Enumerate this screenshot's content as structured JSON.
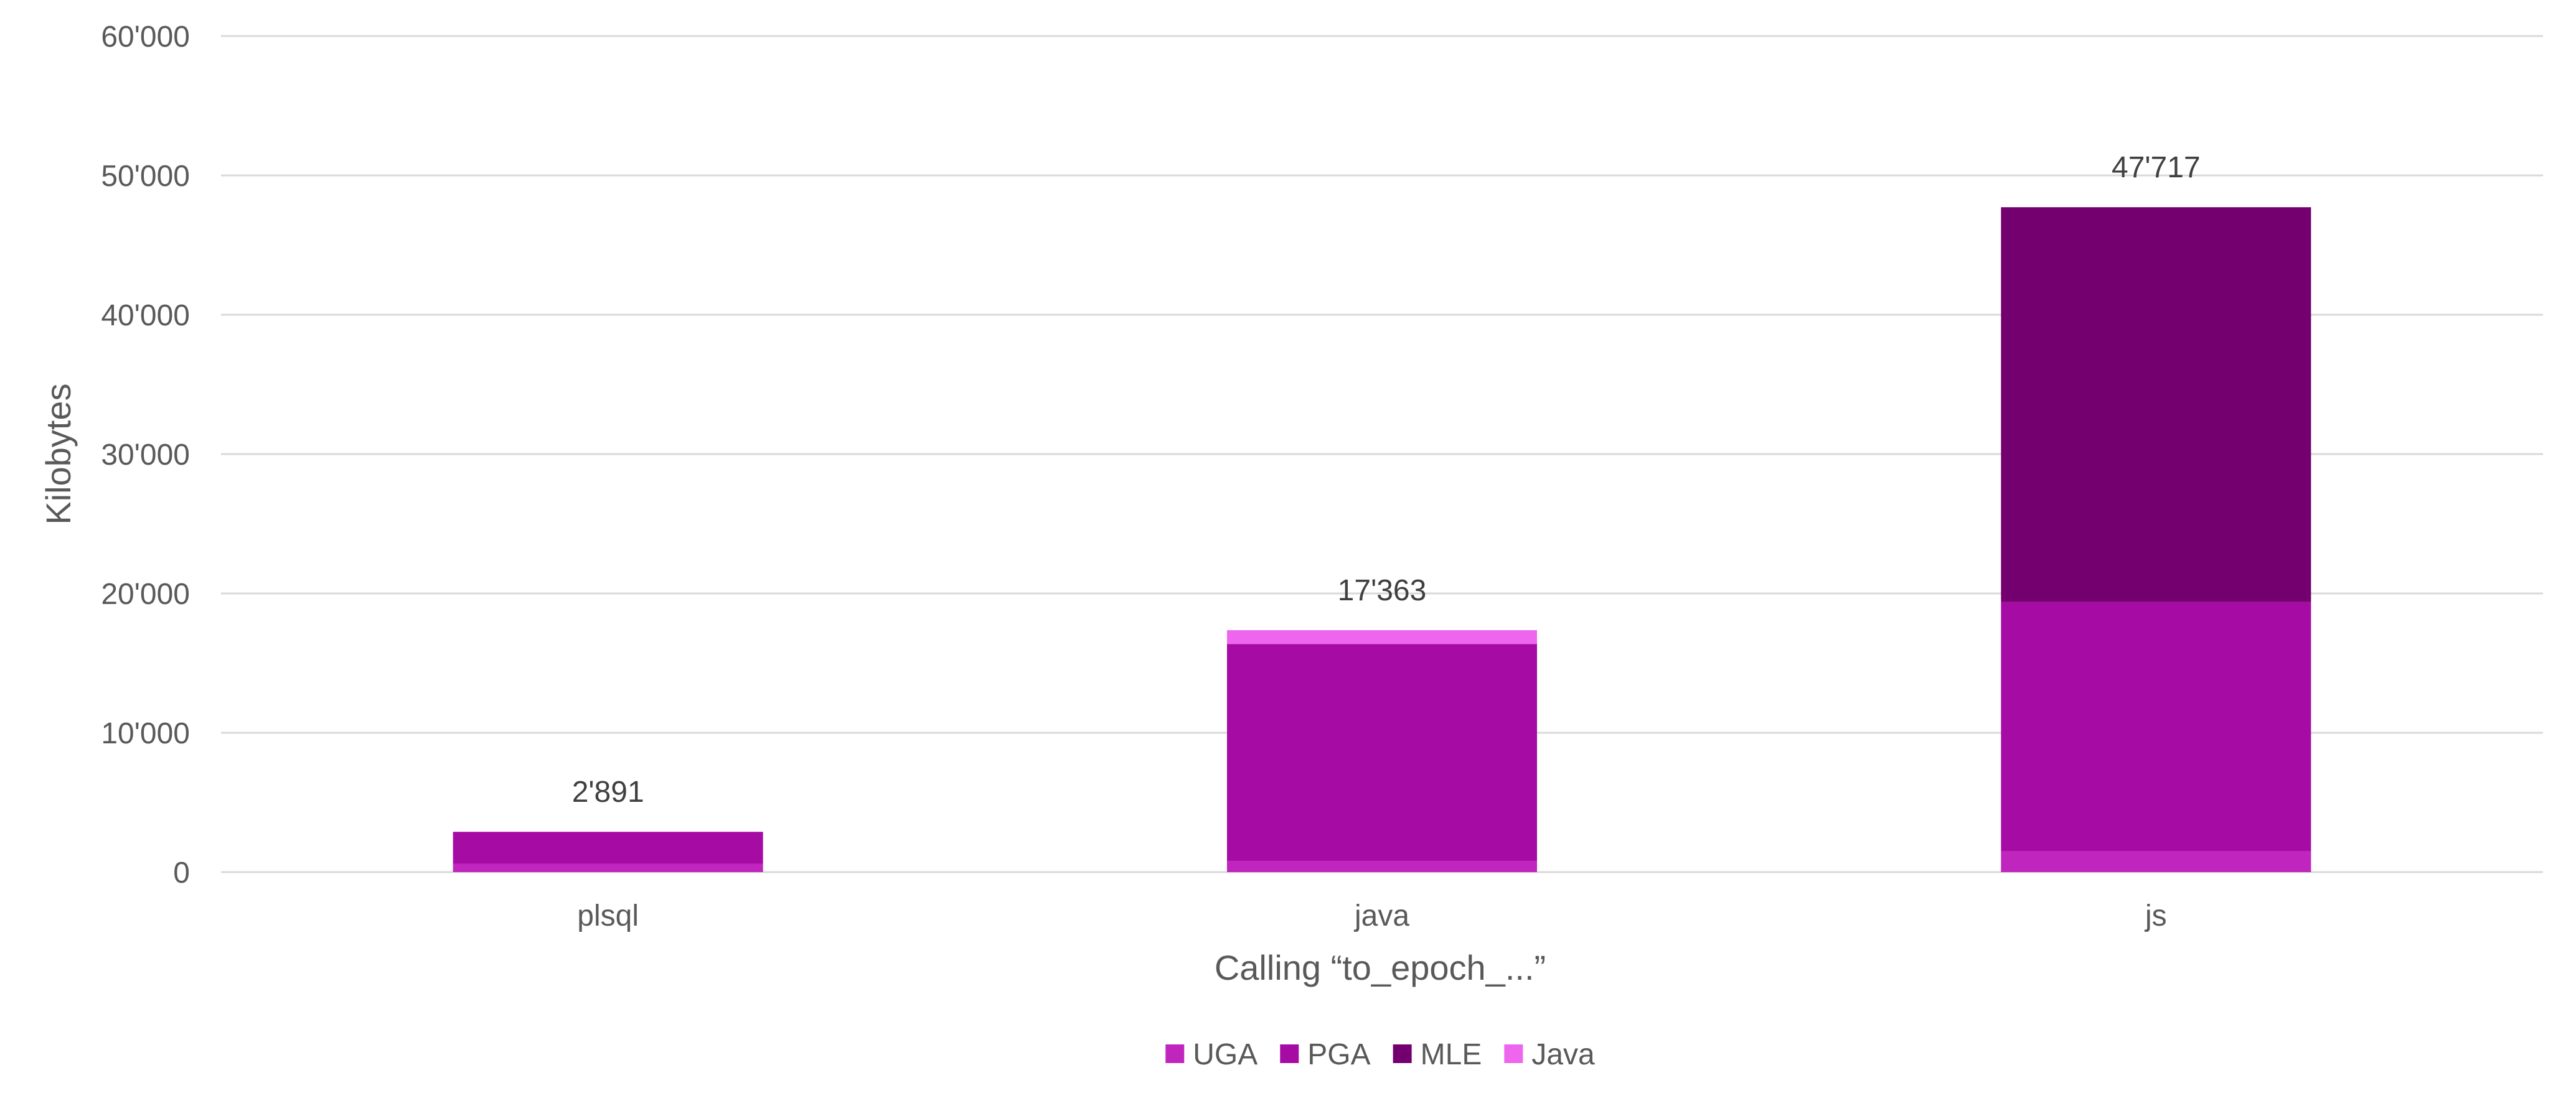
{
  "chart_data": {
    "type": "bar",
    "stacked": true,
    "title": "",
    "categories": [
      "plsql",
      "java",
      "js"
    ],
    "series": [
      {
        "name": "UGA",
        "color": "#C026BD",
        "values": [
          600,
          800,
          1500
        ]
      },
      {
        "name": "PGA",
        "color": "#A60CA3",
        "values": [
          2291,
          15563,
          17900
        ]
      },
      {
        "name": "MLE",
        "color": "#73006E",
        "values": [
          0,
          0,
          28317
        ]
      },
      {
        "name": "Java",
        "color": "#EE66EE",
        "values": [
          0,
          1000,
          0
        ]
      }
    ],
    "totals": [
      2891,
      17363,
      47717
    ],
    "total_labels": [
      "2'891",
      "17'363",
      "47'717"
    ],
    "xlabel": "Calling “to_epoch_...”",
    "ylabel": "Kilobytes",
    "ylim": [
      0,
      60000
    ],
    "yticks": [
      0,
      10000,
      20000,
      30000,
      40000,
      50000,
      60000
    ],
    "ytick_labels": [
      "0",
      "10'000",
      "20'000",
      "30'000",
      "40'000",
      "50'000",
      "60'000"
    ],
    "grid": true,
    "legend": "bottom-center",
    "gridline_color": "#D9D9D9"
  }
}
